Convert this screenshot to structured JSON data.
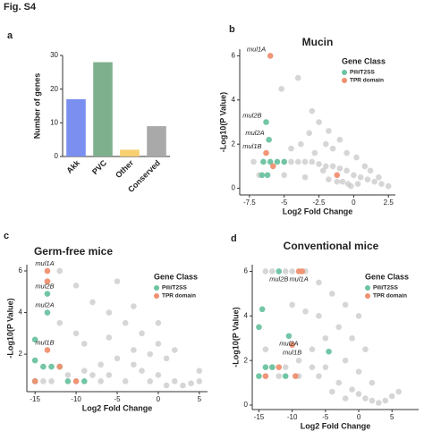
{
  "figure_title": "Fig. S4",
  "chart_data": [
    {
      "type": "bar",
      "panel": "a",
      "ylabel": "Number of genes",
      "categories": [
        "Akk",
        "PVC",
        "Other",
        "Conserved"
      ],
      "values": [
        17,
        28,
        2,
        9
      ],
      "colors": [
        "#7b8ff0",
        "#7fb08e",
        "#f7cf6e",
        "#a9a9a9"
      ],
      "ylim": [
        0,
        30
      ],
      "yticks": [
        0,
        10,
        20,
        30
      ]
    },
    {
      "type": "scatter",
      "panel": "b",
      "title": "Mucin",
      "xlabel": "Log2 Fold Change",
      "ylabel": "-Log10(P Value)",
      "legend_title": "Gene Class",
      "legend": "upper right",
      "xlim": [
        -8.2,
        3
      ],
      "xticks": [
        -7.5,
        -5,
        -2.5,
        0,
        2.5
      ],
      "ylim": [
        -0.3,
        6.3
      ],
      "yticks": [
        0,
        2,
        4,
        6
      ],
      "series": [
        {
          "color": "#c8c8c8",
          "x": [
            -7.2,
            -6.8,
            -5,
            -4.5,
            -4,
            -3.5,
            -3,
            -2.5,
            -2,
            -1.5,
            -1,
            -0.5,
            0,
            0.5,
            1,
            1.5,
            2,
            2.5,
            -0.2,
            0.3,
            -0.8,
            -1.8,
            -3.5,
            -5,
            -4,
            -3,
            -2.5,
            -3.2,
            -1.8,
            -2,
            -1.5,
            -1,
            -0.5,
            0.2,
            -3.8,
            -4.5,
            -5.2,
            -2.8,
            0.8,
            1.2,
            -1.2,
            -0.4,
            1.8,
            -2.2
          ],
          "values": [
            1.2,
            0.6,
            1.2,
            1.2,
            1.2,
            1.2,
            1.2,
            1.1,
            1.0,
            1.0,
            0.9,
            0.8,
            0.6,
            0.5,
            0.4,
            0.3,
            0.2,
            0.1,
            0.1,
            0.2,
            0.3,
            0.4,
            0.5,
            0.6,
            5.0,
            3.5,
            3.0,
            2.5,
            2.6,
            2.0,
            1.8,
            2.2,
            1.6,
            1.4,
            2.0,
            1.8,
            4.5,
            1.6,
            1.0,
            0.8,
            0.3,
            0.2,
            0.5,
            0.8
          ]
        },
        {
          "name": "Pili/T2SS",
          "color": "#6cc3a0",
          "x": [
            -6.3,
            -6.1,
            -6.5,
            -6.0,
            -5.5,
            -5.0,
            -6.6,
            -6.2
          ],
          "values": [
            3.0,
            2.2,
            1.2,
            1.2,
            1.2,
            1.2,
            0.6,
            0.6
          ]
        },
        {
          "name": "TPR domain",
          "color": "#ef9070",
          "x": [
            -6.0,
            -6.3,
            -5.8,
            -1.2
          ],
          "values": [
            6.0,
            1.6,
            1.0,
            0.6
          ]
        }
      ],
      "annotations": [
        {
          "text": "mul1A",
          "x": -6.0,
          "y": 6.0
        },
        {
          "text": "mul2B",
          "x": -6.3,
          "y": 3.0
        },
        {
          "text": "mul2A",
          "x": -6.1,
          "y": 2.2
        },
        {
          "text": "mul1B",
          "x": -6.3,
          "y": 1.6
        }
      ]
    },
    {
      "type": "scatter",
      "panel": "c",
      "title": "Germ-free mice",
      "xlabel": "Log2 Fold Change",
      "ylabel": "-Log10(P Value)",
      "legend_title": "Gene Class",
      "legend": "upper right",
      "xlim": [
        -16,
        6
      ],
      "xticks": [
        -15,
        -10,
        -5,
        0,
        5
      ],
      "ylim": [
        0.2,
        6.3
      ],
      "yticks": [
        2,
        4,
        6
      ],
      "series": [
        {
          "color": "#c8c8c8",
          "x": [
            -12,
            -8,
            -6,
            -4,
            -2,
            0,
            -1,
            1,
            -3,
            -5,
            -7,
            -9,
            -11,
            -13,
            -10,
            -7,
            -4,
            -1,
            2,
            4,
            5,
            -2,
            0,
            1,
            3,
            -12,
            -10,
            -9,
            -6,
            -3,
            0,
            2,
            5,
            -14,
            -15,
            -6,
            -8,
            -5,
            -10,
            -3
          ],
          "values": [
            6,
            4.5,
            4,
            3.5,
            3,
            2.5,
            2,
            1.8,
            2.2,
            1.8,
            1.5,
            1.2,
            1.0,
            0.7,
            0.7,
            0.7,
            0.7,
            0.7,
            0.7,
            0.6,
            0.7,
            1.2,
            1.0,
            0.5,
            0.5,
            3.5,
            3,
            2.5,
            2.8,
            1.5,
            3.5,
            2.2,
            1.2,
            0.7,
            0.7,
            1.0,
            1.0,
            5.5,
            5.3,
            4.3
          ]
        },
        {
          "name": "Pili/T2SS",
          "color": "#6cc3a0",
          "x": [
            -13.5,
            -13.5,
            -15,
            -15,
            -14,
            -13,
            -12,
            -15,
            -11,
            -9
          ],
          "values": [
            4.9,
            4.0,
            2.7,
            1.7,
            1.4,
            1.4,
            1.4,
            0.7,
            0.7,
            0.7
          ]
        },
        {
          "name": "TPR domain",
          "color": "#ef9070",
          "x": [
            -13.5,
            -13.5,
            -13.5,
            -12,
            -10,
            -15
          ],
          "values": [
            6.0,
            5.5,
            2.2,
            1.4,
            0.7,
            0.7
          ]
        }
      ],
      "annotations": [
        {
          "text": "mul1A",
          "x": -13.5,
          "y": 6.0
        },
        {
          "text": "mul2B",
          "x": -13.5,
          "y": 4.9
        },
        {
          "text": "mul2A",
          "x": -13.5,
          "y": 4.0
        },
        {
          "text": "mul1B",
          "x": -13.5,
          "y": 2.2
        }
      ]
    },
    {
      "type": "scatter",
      "panel": "d",
      "title": "Conventional mice",
      "xlabel": "Log2 Fold Change",
      "ylabel": "-Log10(P Value)",
      "legend_title": "Gene Class",
      "legend": "upper right",
      "xlim": [
        -16,
        9
      ],
      "xticks": [
        -15,
        -10,
        -5,
        0,
        5
      ],
      "ylim": [
        -0.2,
        6.3
      ],
      "yticks": [
        0,
        2,
        4,
        6
      ],
      "series": [
        {
          "color": "#c8c8c8",
          "x": [
            -14,
            -13,
            -11,
            -10,
            -8,
            -6,
            -4,
            -2,
            0,
            -1,
            1,
            -3,
            -5,
            -7,
            -9,
            -11,
            -13,
            -12,
            -9,
            -6,
            -3,
            -1,
            0,
            1,
            2,
            3,
            4,
            -2,
            -4,
            -8,
            -6,
            -10,
            -2,
            0,
            2,
            5,
            6,
            -14,
            -7,
            -5
          ],
          "values": [
            6,
            6,
            6,
            6,
            6,
            5.5,
            5,
            4.5,
            4,
            3,
            2.5,
            3.5,
            3,
            2.5,
            2,
            1.7,
            1.7,
            1.3,
            1.3,
            1.3,
            1,
            0.7,
            0.5,
            0.3,
            0.2,
            0.1,
            0.2,
            0.3,
            0.6,
            4.2,
            4.0,
            4.5,
            2,
            1.5,
            1,
            0.4,
            0.6,
            2.5,
            1.7,
            1.7
          ]
        },
        {
          "name": "Pili/T2SS",
          "color": "#6cc3a0",
          "x": [
            -12,
            -15,
            -14.5,
            -10.5,
            -4.5,
            -14,
            -13,
            -15,
            -11
          ],
          "values": [
            6.0,
            3.5,
            4.3,
            3.1,
            2.4,
            1.7,
            1.7,
            1.3,
            1.3
          ]
        },
        {
          "name": "TPR domain",
          "color": "#ef9070",
          "x": [
            -9,
            -8.5,
            -10,
            -14,
            -12,
            -9.5
          ],
          "values": [
            6.0,
            6.0,
            2.7,
            1.3,
            1.7,
            1.3
          ]
        }
      ],
      "annotations": [
        {
          "text": "mul2B",
          "x": -12,
          "y": 6.0
        },
        {
          "text": "mul1A",
          "x": -9,
          "y": 6.0
        },
        {
          "text": "mul2A",
          "x": -10.5,
          "y": 3.1
        },
        {
          "text": "mul1B",
          "x": -10,
          "y": 2.7
        }
      ]
    }
  ]
}
